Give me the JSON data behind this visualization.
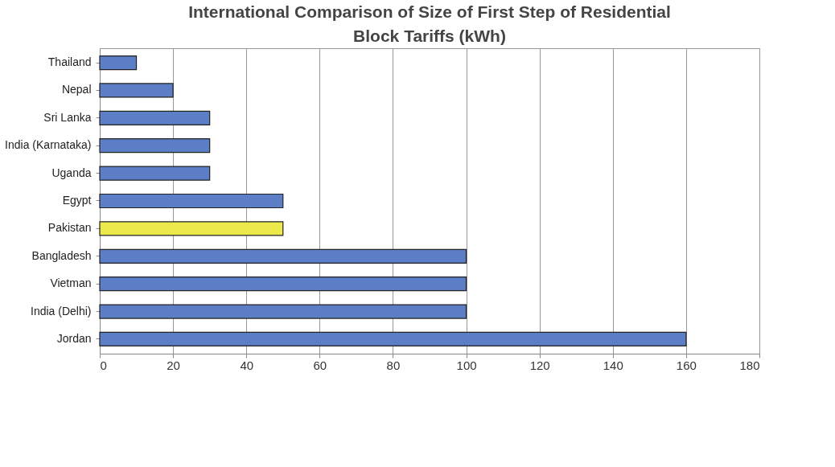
{
  "chart_data": {
    "type": "bar",
    "orientation": "horizontal",
    "title": "International Comparison of Size of First Step of Residential Block Tariffs (kWh)",
    "categories": [
      "Thailand",
      "Nepal",
      "Sri Lanka",
      "India (Karnataka)",
      "Uganda",
      "Egypt",
      "Pakistan",
      "Bangladesh",
      "Vietman",
      "India (Delhi)",
      "Jordan"
    ],
    "values": [
      10,
      20,
      30,
      30,
      30,
      50,
      50,
      100,
      100,
      100,
      160
    ],
    "colors": [
      "#5b7ec6",
      "#5b7ec6",
      "#5b7ec6",
      "#5b7ec6",
      "#5b7ec6",
      "#5b7ec6",
      "#ece94a",
      "#5b7ec6",
      "#5b7ec6",
      "#5b7ec6",
      "#5b7ec6"
    ],
    "xlim": [
      0,
      180
    ],
    "xticks": [
      0,
      20,
      40,
      60,
      80,
      100,
      120,
      140,
      160,
      180
    ],
    "grid": "x"
  }
}
